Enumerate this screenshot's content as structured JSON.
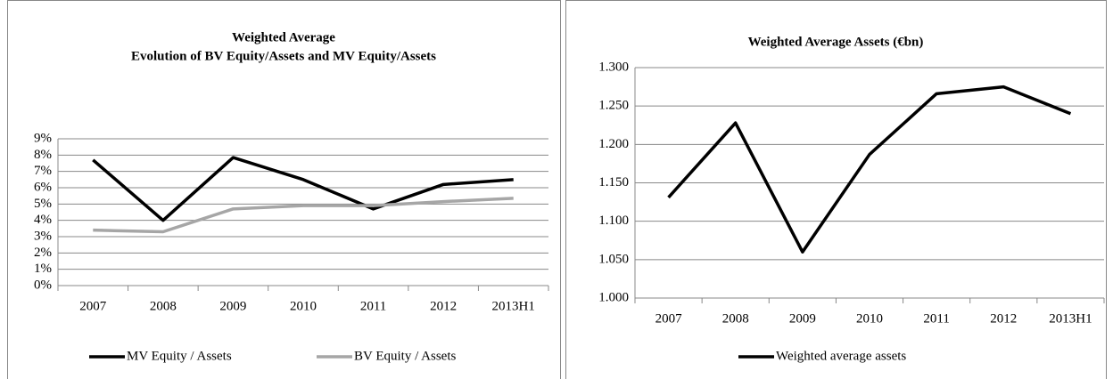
{
  "chart_data": [
    {
      "type": "line",
      "title": "Weighted Average",
      "subtitle": "Evolution of BV Equity/Assets and MV Equity/Assets",
      "categories": [
        "2007",
        "2008",
        "2009",
        "2010",
        "2011",
        "2012",
        "2013H1"
      ],
      "series": [
        {
          "name": "MV Equity / Assets",
          "color": "#000000",
          "values": [
            7.7,
            4.0,
            7.85,
            6.5,
            4.7,
            6.2,
            6.5
          ]
        },
        {
          "name": "BV Equity / Assets",
          "color": "#a6a6a6",
          "values": [
            3.4,
            3.3,
            4.7,
            4.9,
            4.9,
            5.15,
            5.35
          ]
        }
      ],
      "ylim": [
        0,
        9
      ],
      "yticks": [
        {
          "value": 0,
          "label": "0%"
        },
        {
          "value": 1,
          "label": "1%"
        },
        {
          "value": 2,
          "label": "2%"
        },
        {
          "value": 3,
          "label": "3%"
        },
        {
          "value": 4,
          "label": "4%"
        },
        {
          "value": 5,
          "label": "5%"
        },
        {
          "value": 6,
          "label": "6%"
        },
        {
          "value": 7,
          "label": "7%"
        },
        {
          "value": 8,
          "label": "8%"
        },
        {
          "value": 9,
          "label": "9%"
        }
      ],
      "grid": true,
      "legend": "bottom"
    },
    {
      "type": "line",
      "title": "Weighted Average Assets (€bn)",
      "categories": [
        "2007",
        "2008",
        "2009",
        "2010",
        "2011",
        "2012",
        "2013H1"
      ],
      "series": [
        {
          "name": "Weighted average assets",
          "color": "#000000",
          "values": [
            1.131,
            1.228,
            1.06,
            1.187,
            1.266,
            1.275,
            1.24
          ]
        }
      ],
      "ylim": [
        1.0,
        1.3
      ],
      "yticks": [
        {
          "value": 1.0,
          "label": "1.000"
        },
        {
          "value": 1.05,
          "label": "1.050"
        },
        {
          "value": 1.1,
          "label": "1.100"
        },
        {
          "value": 1.15,
          "label": "1.150"
        },
        {
          "value": 1.2,
          "label": "1.200"
        },
        {
          "value": 1.25,
          "label": "1.250"
        },
        {
          "value": 1.3,
          "label": "1.300"
        }
      ],
      "grid": true,
      "legend": "bottom"
    }
  ]
}
